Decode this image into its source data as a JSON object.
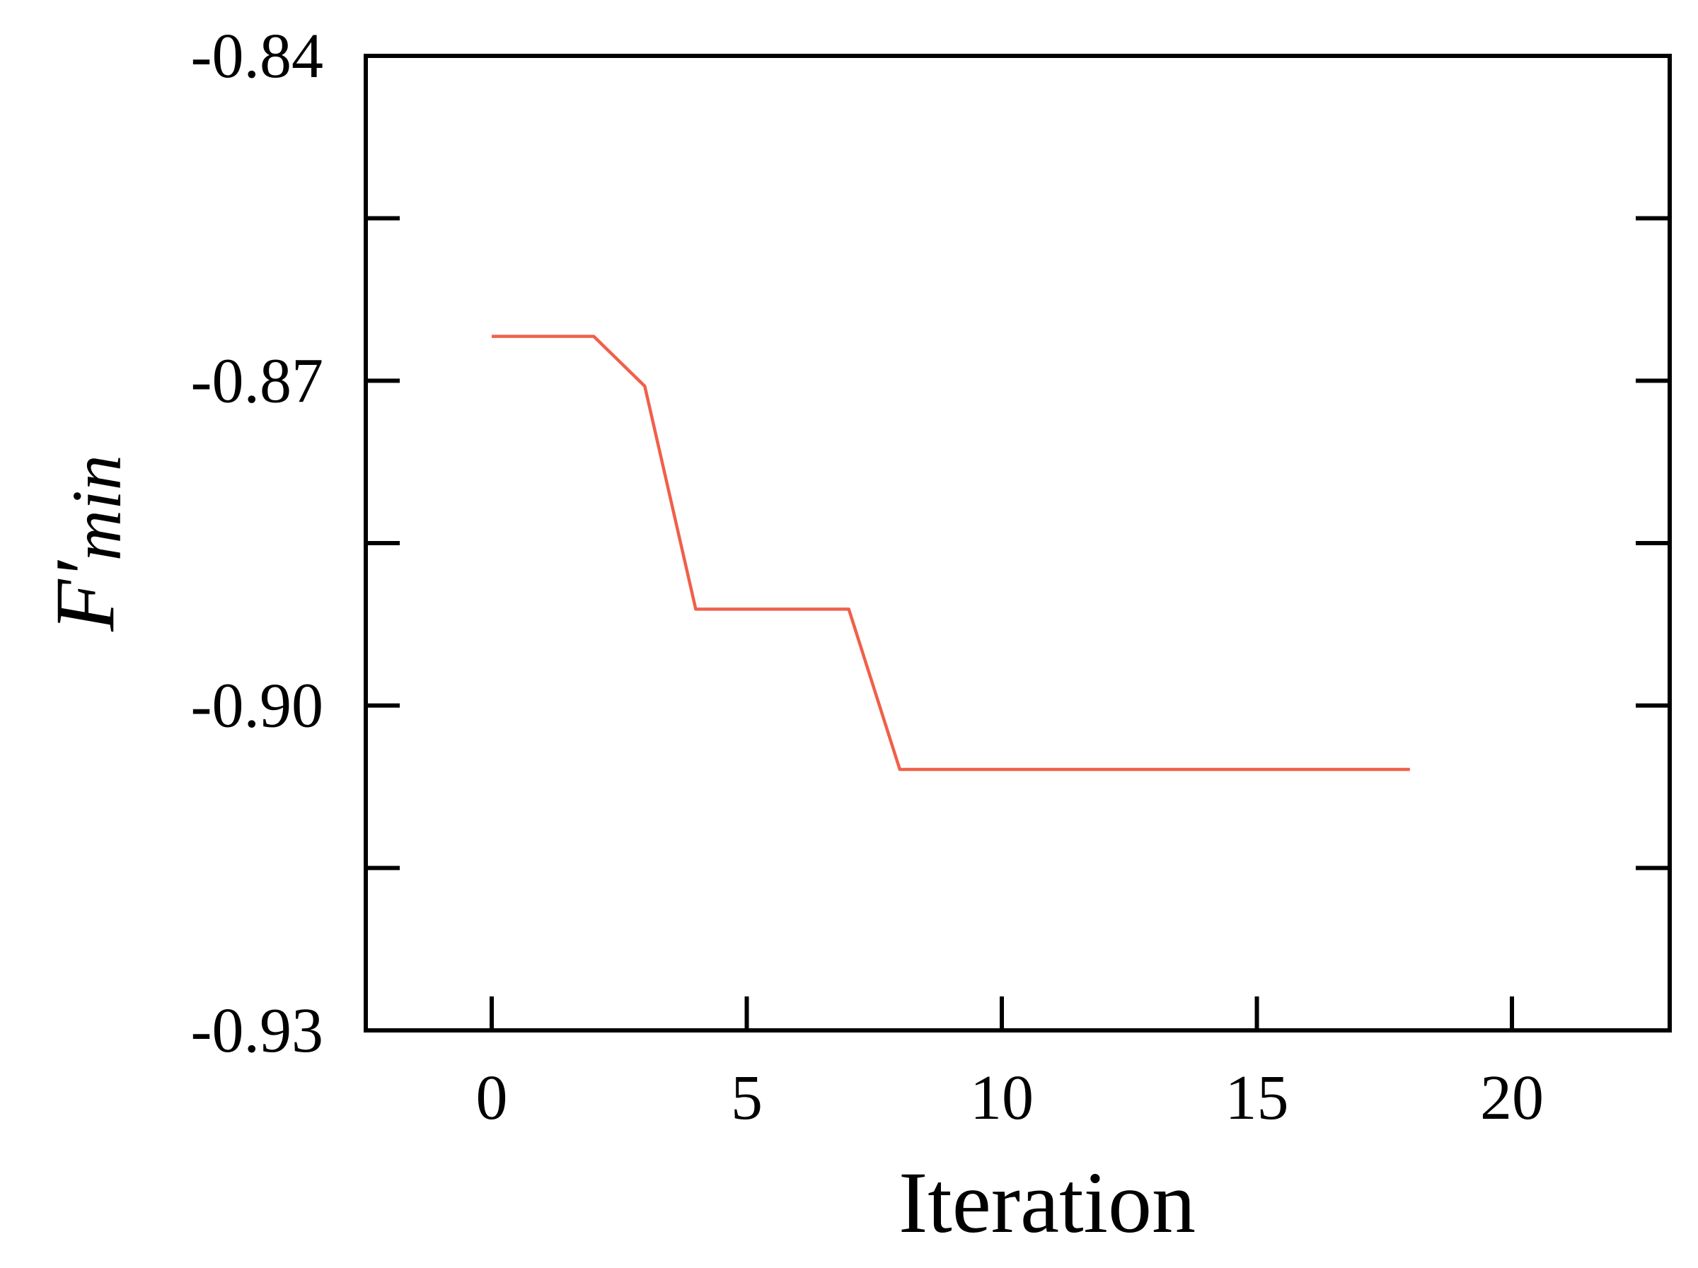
{
  "chart_data": {
    "type": "line",
    "xlabel": "Iteration",
    "ylabel": {
      "main": "F′",
      "sub": "min"
    },
    "xlim": [
      -2.5,
      23
    ],
    "ylim": [
      -0.93,
      -0.84
    ],
    "xticks": [
      0,
      5,
      10,
      15,
      20
    ],
    "xtick_labels": [
      "0",
      "5",
      "10",
      "15",
      "20"
    ],
    "yticks": [
      -0.84,
      -0.855,
      -0.87,
      -0.885,
      -0.9,
      -0.915,
      -0.93
    ],
    "ytick_labels": [
      "-0.84",
      "",
      "-0.87",
      "",
      "-0.90",
      "",
      "-0.93"
    ],
    "grid": false,
    "series": [
      {
        "color": "#f0604a",
        "x": [
          0,
          1,
          2,
          3,
          4,
          5,
          6,
          7,
          8,
          9,
          10,
          11,
          12,
          13,
          14,
          15,
          16,
          17,
          18
        ],
        "y": [
          -0.8659,
          -0.8659,
          -0.8659,
          -0.8705,
          -0.8911,
          -0.8911,
          -0.8911,
          -0.8911,
          -0.9059,
          -0.9059,
          -0.9059,
          -0.9059,
          -0.9059,
          -0.9059,
          -0.9059,
          -0.9059,
          -0.9059,
          -0.9059,
          -0.9059
        ]
      }
    ]
  }
}
